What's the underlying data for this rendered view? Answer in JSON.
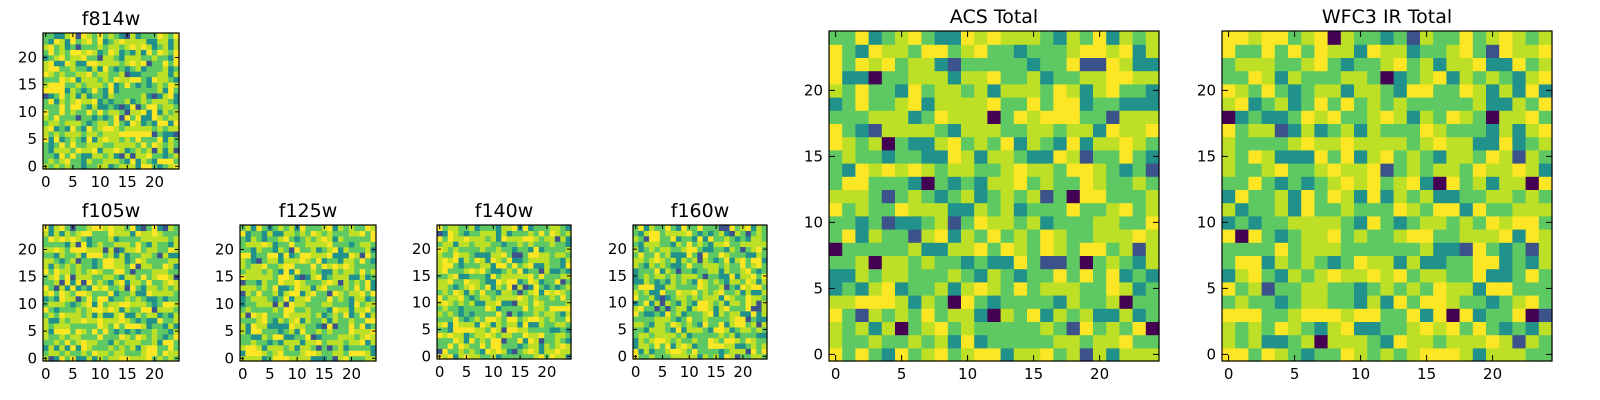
{
  "colormap": [
    "#440154",
    "#3b528b",
    "#21918c",
    "#5ec962",
    "#bddf26",
    "#fde725"
  ],
  "chart_data": [
    {
      "type": "heatmap",
      "title": "f814w",
      "size": 25,
      "xticks": [
        "0",
        "5",
        "10",
        "15",
        "20"
      ],
      "yticks": [
        "0",
        "5",
        "10",
        "15",
        "20"
      ],
      "ylim": [
        0,
        24
      ],
      "xlim": [
        0,
        24
      ],
      "hotspots": [],
      "grid": false
    },
    {
      "type": "heatmap",
      "title": "f105w",
      "size": 25,
      "xticks": [
        "0",
        "5",
        "10",
        "15",
        "20"
      ],
      "yticks": [
        "0",
        "5",
        "10",
        "15",
        "20"
      ],
      "ylim": [
        0,
        24
      ],
      "xlim": [
        0,
        24
      ],
      "hotspots": [],
      "grid": false
    },
    {
      "type": "heatmap",
      "title": "f125w",
      "size": 25,
      "xticks": [
        "0",
        "5",
        "10",
        "15",
        "20"
      ],
      "yticks": [
        "0",
        "5",
        "10",
        "15",
        "20"
      ],
      "ylim": [
        0,
        24
      ],
      "xlim": [
        0,
        24
      ],
      "hotspots": [],
      "grid": false
    },
    {
      "type": "heatmap",
      "title": "f140w",
      "size": 25,
      "xticks": [
        "0",
        "5",
        "10",
        "15",
        "20"
      ],
      "yticks": [
        "0",
        "5",
        "10",
        "15",
        "20"
      ],
      "ylim": [
        0,
        24
      ],
      "xlim": [
        0,
        24
      ],
      "hotspots": [],
      "grid": false
    },
    {
      "type": "heatmap",
      "title": "f160w",
      "size": 25,
      "xticks": [
        "0",
        "5",
        "10",
        "15",
        "20"
      ],
      "yticks": [
        "0",
        "5",
        "10",
        "15",
        "20"
      ],
      "ylim": [
        0,
        24
      ],
      "xlim": [
        0,
        24
      ],
      "hotspots": [],
      "grid": false
    },
    {
      "type": "heatmap",
      "title": "ACS Total",
      "size": 25,
      "xticks": [
        "0",
        "5",
        "10",
        "15",
        "20"
      ],
      "yticks": [
        "0",
        "5",
        "10",
        "15",
        "20"
      ],
      "ylim": [
        0,
        24
      ],
      "xlim": [
        0,
        24
      ],
      "hotspots": [
        [
          0,
          8
        ],
        [
          3,
          7
        ],
        [
          3,
          21
        ],
        [
          4,
          16
        ],
        [
          5,
          2
        ],
        [
          7,
          13
        ],
        [
          9,
          4
        ],
        [
          12,
          3
        ],
        [
          12,
          18
        ],
        [
          18,
          12
        ],
        [
          19,
          7
        ],
        [
          22,
          4
        ],
        [
          24,
          2
        ]
      ],
      "grid": false
    },
    {
      "type": "heatmap",
      "title": "WFC3 IR Total",
      "size": 25,
      "xticks": [
        "0",
        "5",
        "10",
        "15",
        "20"
      ],
      "yticks": [
        "0",
        "5",
        "10",
        "15",
        "20"
      ],
      "ylim": [
        0,
        24
      ],
      "xlim": [
        0,
        24
      ],
      "hotspots": [
        [
          0,
          18
        ],
        [
          1,
          9
        ],
        [
          7,
          1
        ],
        [
          8,
          24
        ],
        [
          12,
          21
        ],
        [
          16,
          13
        ],
        [
          17,
          3
        ],
        [
          20,
          18
        ],
        [
          23,
          13
        ],
        [
          23,
          3
        ]
      ],
      "grid": false
    }
  ]
}
